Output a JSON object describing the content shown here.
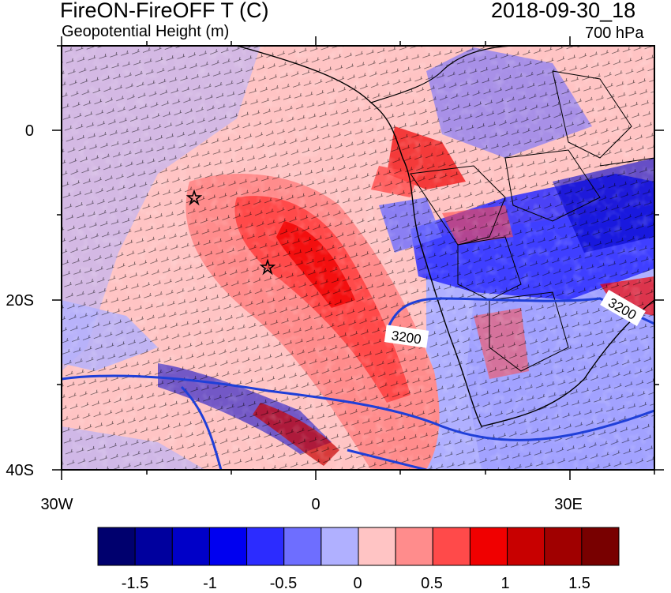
{
  "header": {
    "title": "FireON-FireOFF T (C)",
    "subtitle": "Geopotential Height (m)",
    "datetime": "2018-09-30_18",
    "level": "700 hPa"
  },
  "map": {
    "lat_ticks": [
      "0",
      "20S",
      "40S"
    ],
    "lon_ticks": [
      "30W",
      "0",
      "30E"
    ],
    "contour_labels": [
      "3200",
      "3200"
    ],
    "markers": [
      "star",
      "star"
    ],
    "contour_color": "#1f3fd8",
    "land_outline_color": "#000000"
  },
  "colorbar": {
    "colors": [
      "#00006e",
      "#00009e",
      "#0000c8",
      "#0000f0",
      "#2c2cff",
      "#6e6eff",
      "#b0b0ff",
      "#ffc4c4",
      "#ff8c8c",
      "#ff4a4a",
      "#f00000",
      "#c80000",
      "#a00000",
      "#780000"
    ],
    "labels": [
      "-1.5",
      "-1",
      "-0.5",
      "0",
      "0.5",
      "1",
      "1.5"
    ],
    "levels": [
      -1.5,
      -1.25,
      -1,
      -0.75,
      -0.5,
      -0.25,
      0,
      0.25,
      0.5,
      0.75,
      1,
      1.25,
      1.5
    ]
  }
}
